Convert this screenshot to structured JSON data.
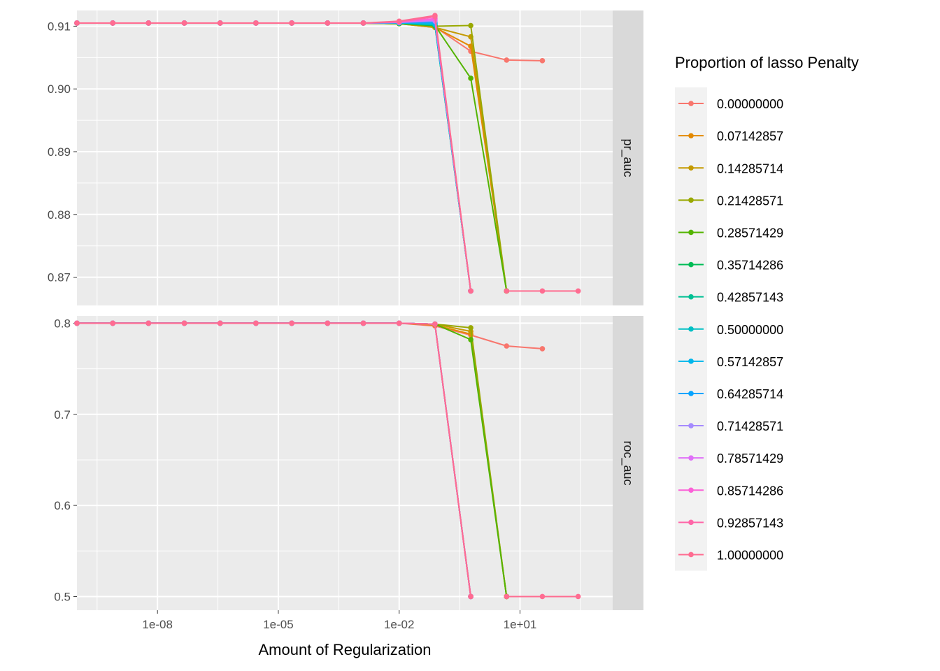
{
  "chart_data": {
    "type": "line",
    "x_scale": "log10",
    "xlabel": "Amount of Regularization",
    "x_ticks": [
      {
        "value": 1e-08,
        "label": "1e-08"
      },
      {
        "value": 1e-05,
        "label": "1e-05"
      },
      {
        "value": 0.01,
        "label": "1e-02"
      },
      {
        "value": 10,
        "label": "1e+01"
      }
    ],
    "xlim": [
      1e-10,
      2000
    ],
    "x": [
      1e-10,
      7.74e-10,
      5.99e-09,
      4.64e-08,
      3.59e-07,
      2.78e-06,
      2.15e-05,
      0.000167,
      0.00129,
      0.01,
      0.0774,
      0.599,
      4.64,
      35.9
    ],
    "legend": {
      "title": "Proportion of lasso Penalty",
      "position": "right"
    },
    "grid": true,
    "facets": [
      {
        "strip": "pr_auc",
        "ylim": [
          0.8655,
          0.9125
        ],
        "y_ticks": [
          {
            "value": 0.87,
            "label": "0.87"
          },
          {
            "value": 0.88,
            "label": "0.88"
          },
          {
            "value": 0.89,
            "label": "0.89"
          },
          {
            "value": 0.9,
            "label": "0.90"
          },
          {
            "value": 0.91,
            "label": "0.91"
          }
        ],
        "series": [
          {
            "name": "0.00000000",
            "color": "#F8766D",
            "values": [
              0.9105,
              0.9105,
              0.9105,
              0.9105,
              0.9105,
              0.9105,
              0.9105,
              0.9105,
              0.9105,
              0.9104,
              0.9099,
              0.906,
              0.9046,
              0.9045
            ]
          },
          {
            "name": "0.07142857",
            "color": "#E38900",
            "values": [
              0.9105,
              0.9105,
              0.9105,
              0.9105,
              0.9105,
              0.9105,
              0.9105,
              0.9105,
              0.9105,
              0.9104,
              0.9098,
              0.9068,
              0.8678,
              null
            ]
          },
          {
            "name": "0.14285714",
            "color": "#C49A00",
            "values": [
              0.9105,
              0.9105,
              0.9105,
              0.9105,
              0.9105,
              0.9105,
              0.9105,
              0.9105,
              0.9105,
              0.9104,
              0.9098,
              0.9083,
              0.8678,
              null
            ]
          },
          {
            "name": "0.21428571",
            "color": "#99A800",
            "values": [
              0.9105,
              0.9105,
              0.9105,
              0.9105,
              0.9105,
              0.9105,
              0.9105,
              0.9105,
              0.9105,
              0.9104,
              0.91,
              0.9101,
              0.8678,
              null
            ]
          },
          {
            "name": "0.28571429",
            "color": "#53B400",
            "values": [
              0.9105,
              0.9105,
              0.9105,
              0.9105,
              0.9105,
              0.9105,
              0.9105,
              0.9105,
              0.9105,
              0.9104,
              0.9101,
              0.9017,
              0.8678,
              null
            ]
          },
          {
            "name": "0.35714286",
            "color": "#00BC56",
            "values": [
              0.9105,
              0.9105,
              0.9105,
              0.9105,
              0.9105,
              0.9105,
              0.9105,
              0.9105,
              0.9105,
              0.9105,
              0.9101,
              0.8678,
              null,
              null
            ]
          },
          {
            "name": "0.42857143",
            "color": "#00C094",
            "values": [
              0.9105,
              0.9105,
              0.9105,
              0.9105,
              0.9105,
              0.9105,
              0.9105,
              0.9105,
              0.9105,
              0.9105,
              0.9102,
              0.8678,
              null,
              null
            ]
          },
          {
            "name": "0.50000000",
            "color": "#00BFC4",
            "values": [
              0.9105,
              0.9105,
              0.9105,
              0.9105,
              0.9105,
              0.9105,
              0.9105,
              0.9105,
              0.9105,
              0.9105,
              0.9103,
              0.8678,
              null,
              null
            ]
          },
          {
            "name": "0.57142857",
            "color": "#00B6EB",
            "values": [
              0.9105,
              0.9105,
              0.9105,
              0.9105,
              0.9105,
              0.9105,
              0.9105,
              0.9105,
              0.9105,
              0.9105,
              0.9104,
              0.8678,
              null,
              null
            ]
          },
          {
            "name": "0.64285714",
            "color": "#06A4FF",
            "values": [
              0.9105,
              0.9105,
              0.9105,
              0.9105,
              0.9105,
              0.9105,
              0.9105,
              0.9105,
              0.9105,
              0.9106,
              0.9106,
              0.8678,
              null,
              null
            ]
          },
          {
            "name": "0.71428571",
            "color": "#A58AFF",
            "values": [
              0.9105,
              0.9105,
              0.9105,
              0.9105,
              0.9105,
              0.9105,
              0.9105,
              0.9105,
              0.9105,
              0.9106,
              0.9108,
              0.8678,
              null,
              null
            ]
          },
          {
            "name": "0.78571429",
            "color": "#DF70F8",
            "values": [
              0.9105,
              0.9105,
              0.9105,
              0.9105,
              0.9105,
              0.9105,
              0.9105,
              0.9105,
              0.9105,
              0.9106,
              0.911,
              0.8678,
              null,
              null
            ]
          },
          {
            "name": "0.85714286",
            "color": "#FB61D7",
            "values": [
              0.9105,
              0.9105,
              0.9105,
              0.9105,
              0.9105,
              0.9105,
              0.9105,
              0.9105,
              0.9105,
              0.9107,
              0.9112,
              0.8678,
              null,
              null
            ]
          },
          {
            "name": "0.92857143",
            "color": "#FF66A8",
            "values": [
              0.9105,
              0.9105,
              0.9105,
              0.9105,
              0.9105,
              0.9105,
              0.9105,
              0.9105,
              0.9105,
              0.9107,
              0.9115,
              0.8678,
              null,
              null
            ]
          },
          {
            "name": "1.00000000",
            "color": "#FF6C91",
            "values": [
              0.9105,
              0.9105,
              0.9105,
              0.9105,
              0.9105,
              0.9105,
              0.9105,
              0.9105,
              0.9105,
              0.9108,
              0.9117,
              0.8678,
              null,
              null
            ]
          }
        ],
        "tail_points": [
          {
            "x": 4.64,
            "y": 0.8678
          },
          {
            "x": 35.9,
            "y": 0.8678
          },
          {
            "x": 278,
            "y": 0.8678
          }
        ]
      },
      {
        "strip": "roc_auc",
        "ylim": [
          0.485,
          0.808
        ],
        "y_ticks": [
          {
            "value": 0.5,
            "label": "0.5"
          },
          {
            "value": 0.6,
            "label": "0.6"
          },
          {
            "value": 0.7,
            "label": "0.7"
          },
          {
            "value": 0.8,
            "label": "0.8"
          }
        ],
        "series": [
          {
            "name": "0.00000000",
            "color": "#F8766D",
            "values": [
              0.8,
              0.8,
              0.8,
              0.8,
              0.8,
              0.8,
              0.8,
              0.8,
              0.8,
              0.8,
              0.797,
              0.787,
              0.775,
              0.772
            ]
          },
          {
            "name": "0.07142857",
            "color": "#E38900",
            "values": [
              0.8,
              0.8,
              0.8,
              0.8,
              0.8,
              0.8,
              0.8,
              0.8,
              0.8,
              0.8,
              0.798,
              0.788,
              0.5,
              null
            ]
          },
          {
            "name": "0.14285714",
            "color": "#C49A00",
            "values": [
              0.8,
              0.8,
              0.8,
              0.8,
              0.8,
              0.8,
              0.8,
              0.8,
              0.8,
              0.8,
              0.799,
              0.791,
              0.5,
              null
            ]
          },
          {
            "name": "0.21428571",
            "color": "#99A800",
            "values": [
              0.8,
              0.8,
              0.8,
              0.8,
              0.8,
              0.8,
              0.8,
              0.8,
              0.8,
              0.8,
              0.799,
              0.795,
              0.5,
              null
            ]
          },
          {
            "name": "0.28571429",
            "color": "#53B400",
            "values": [
              0.8,
              0.8,
              0.8,
              0.8,
              0.8,
              0.8,
              0.8,
              0.8,
              0.8,
              0.8,
              0.799,
              0.782,
              0.5,
              null
            ]
          },
          {
            "name": "0.35714286",
            "color": "#00BC56",
            "values": [
              0.8,
              0.8,
              0.8,
              0.8,
              0.8,
              0.8,
              0.8,
              0.8,
              0.8,
              0.8,
              0.799,
              0.5,
              null,
              null
            ]
          },
          {
            "name": "0.42857143",
            "color": "#00C094",
            "values": [
              0.8,
              0.8,
              0.8,
              0.8,
              0.8,
              0.8,
              0.8,
              0.8,
              0.8,
              0.8,
              0.799,
              0.5,
              null,
              null
            ]
          },
          {
            "name": "0.50000000",
            "color": "#00BFC4",
            "values": [
              0.8,
              0.8,
              0.8,
              0.8,
              0.8,
              0.8,
              0.8,
              0.8,
              0.8,
              0.8,
              0.799,
              0.5,
              null,
              null
            ]
          },
          {
            "name": "0.57142857",
            "color": "#00B6EB",
            "values": [
              0.8,
              0.8,
              0.8,
              0.8,
              0.8,
              0.8,
              0.8,
              0.8,
              0.8,
              0.8,
              0.799,
              0.5,
              null,
              null
            ]
          },
          {
            "name": "0.64285714",
            "color": "#06A4FF",
            "values": [
              0.8,
              0.8,
              0.8,
              0.8,
              0.8,
              0.8,
              0.8,
              0.8,
              0.8,
              0.8,
              0.799,
              0.5,
              null,
              null
            ]
          },
          {
            "name": "0.71428571",
            "color": "#A58AFF",
            "values": [
              0.8,
              0.8,
              0.8,
              0.8,
              0.8,
              0.8,
              0.8,
              0.8,
              0.8,
              0.8,
              0.799,
              0.5,
              null,
              null
            ]
          },
          {
            "name": "0.78571429",
            "color": "#DF70F8",
            "values": [
              0.8,
              0.8,
              0.8,
              0.8,
              0.8,
              0.8,
              0.8,
              0.8,
              0.8,
              0.8,
              0.799,
              0.5,
              null,
              null
            ]
          },
          {
            "name": "0.85714286",
            "color": "#FB61D7",
            "values": [
              0.8,
              0.8,
              0.8,
              0.8,
              0.8,
              0.8,
              0.8,
              0.8,
              0.8,
              0.8,
              0.799,
              0.5,
              null,
              null
            ]
          },
          {
            "name": "0.92857143",
            "color": "#FF66A8",
            "values": [
              0.8,
              0.8,
              0.8,
              0.8,
              0.8,
              0.8,
              0.8,
              0.8,
              0.8,
              0.8,
              0.799,
              0.5,
              null,
              null
            ]
          },
          {
            "name": "1.00000000",
            "color": "#FF6C91",
            "values": [
              0.8,
              0.8,
              0.8,
              0.8,
              0.8,
              0.8,
              0.8,
              0.8,
              0.8,
              0.8,
              0.799,
              0.5,
              null,
              null
            ]
          }
        ],
        "tail_points": [
          {
            "x": 4.64,
            "y": 0.5
          },
          {
            "x": 35.9,
            "y": 0.5
          },
          {
            "x": 278,
            "y": 0.5
          }
        ]
      }
    ]
  }
}
